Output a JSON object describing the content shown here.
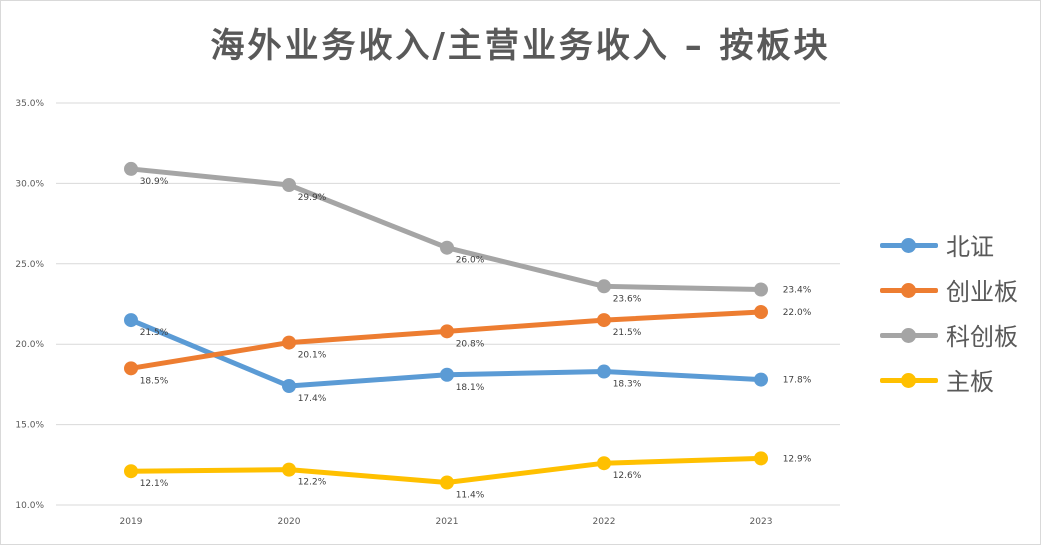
{
  "title": "海外业务收入/主营业务收入 – 按板块",
  "chart_data": {
    "type": "line",
    "title": "海外业务收入/主营业务收入 – 按板块",
    "categories": [
      "2019",
      "2020",
      "2021",
      "2022",
      "2023"
    ],
    "ylim": [
      10.0,
      35.0
    ],
    "yticks": [
      "10.0%",
      "15.0%",
      "20.0%",
      "25.0%",
      "30.0%",
      "35.0%"
    ],
    "grid": "horizontal",
    "legend_position": "right",
    "series": [
      {
        "name": "北证",
        "color": "#5b9bd5",
        "values": [
          21.5,
          17.4,
          18.1,
          18.3,
          17.8
        ],
        "labels": [
          "21.5%",
          "17.4%",
          "18.1%",
          "18.3%",
          "17.8%"
        ]
      },
      {
        "name": "创业板",
        "color": "#ed7d31",
        "values": [
          18.5,
          20.1,
          20.8,
          21.5,
          22.0
        ],
        "labels": [
          "18.5%",
          "20.1%",
          "20.8%",
          "21.5%",
          "22.0%"
        ]
      },
      {
        "name": "科创板",
        "color": "#a5a5a5",
        "values": [
          30.9,
          29.9,
          26.0,
          23.6,
          23.4
        ],
        "labels": [
          "30.9%",
          "29.9%",
          "26.0%",
          "23.6%",
          "23.4%"
        ]
      },
      {
        "name": "主板",
        "color": "#ffc000",
        "values": [
          12.1,
          12.2,
          11.4,
          12.6,
          12.9
        ],
        "labels": [
          "12.1%",
          "12.2%",
          "11.4%",
          "12.6%",
          "12.9%"
        ]
      }
    ]
  }
}
